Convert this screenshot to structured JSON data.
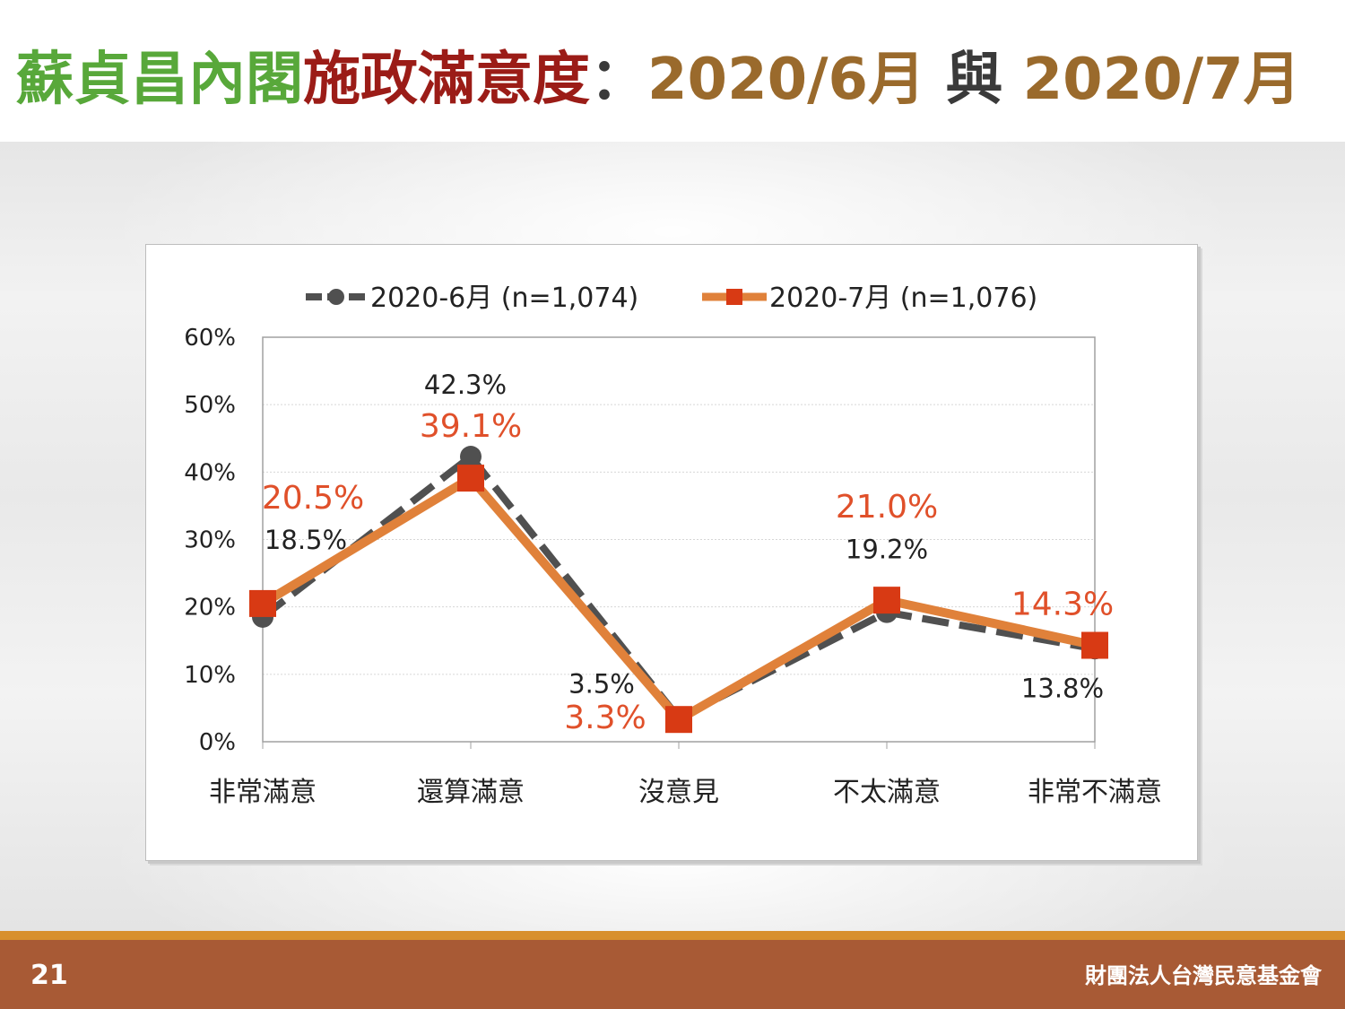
{
  "header": {
    "title_part1": "蘇貞昌內閣",
    "title_part2": "施政滿意度",
    "title_colon": "：",
    "title_part3": "2020/6月",
    "title_sep": " 與 ",
    "title_part4": "2020/7月"
  },
  "footer": {
    "page_number": "21",
    "organization": "財團法人台灣民意基金會"
  },
  "colors": {
    "title_green": "#58a83a",
    "title_red": "#9b1c17",
    "title_brown": "#9a6a2c",
    "series_june": "#505050",
    "series_july_line": "#e0813a",
    "series_july_marker": "#d83a14",
    "label_july": "#e0502a",
    "footer_bar": "#a85a35",
    "footer_stripe": "#d8902e"
  },
  "chart_data": {
    "type": "line",
    "categories": [
      "非常滿意",
      "還算滿意",
      "沒意見",
      "不太滿意",
      "非常不滿意"
    ],
    "series": [
      {
        "name": "2020-6月 (n=1,074)",
        "values": [
          18.5,
          42.3,
          3.5,
          19.2,
          13.8
        ],
        "labels": [
          "18.5%",
          "42.3%",
          "3.5%",
          "19.2%",
          "13.8%"
        ],
        "style": "dashed-circle"
      },
      {
        "name": "2020-7月 (n=1,076)",
        "values": [
          20.5,
          39.1,
          3.3,
          21.0,
          14.3
        ],
        "labels": [
          "20.5%",
          "39.1%",
          "3.3%",
          "21.0%",
          "14.3%"
        ],
        "style": "solid-square"
      }
    ],
    "y_ticks": [
      "0%",
      "10%",
      "20%",
      "30%",
      "40%",
      "50%",
      "60%"
    ],
    "ylim": [
      0,
      60
    ],
    "grid": true,
    "legend_position": "top"
  }
}
